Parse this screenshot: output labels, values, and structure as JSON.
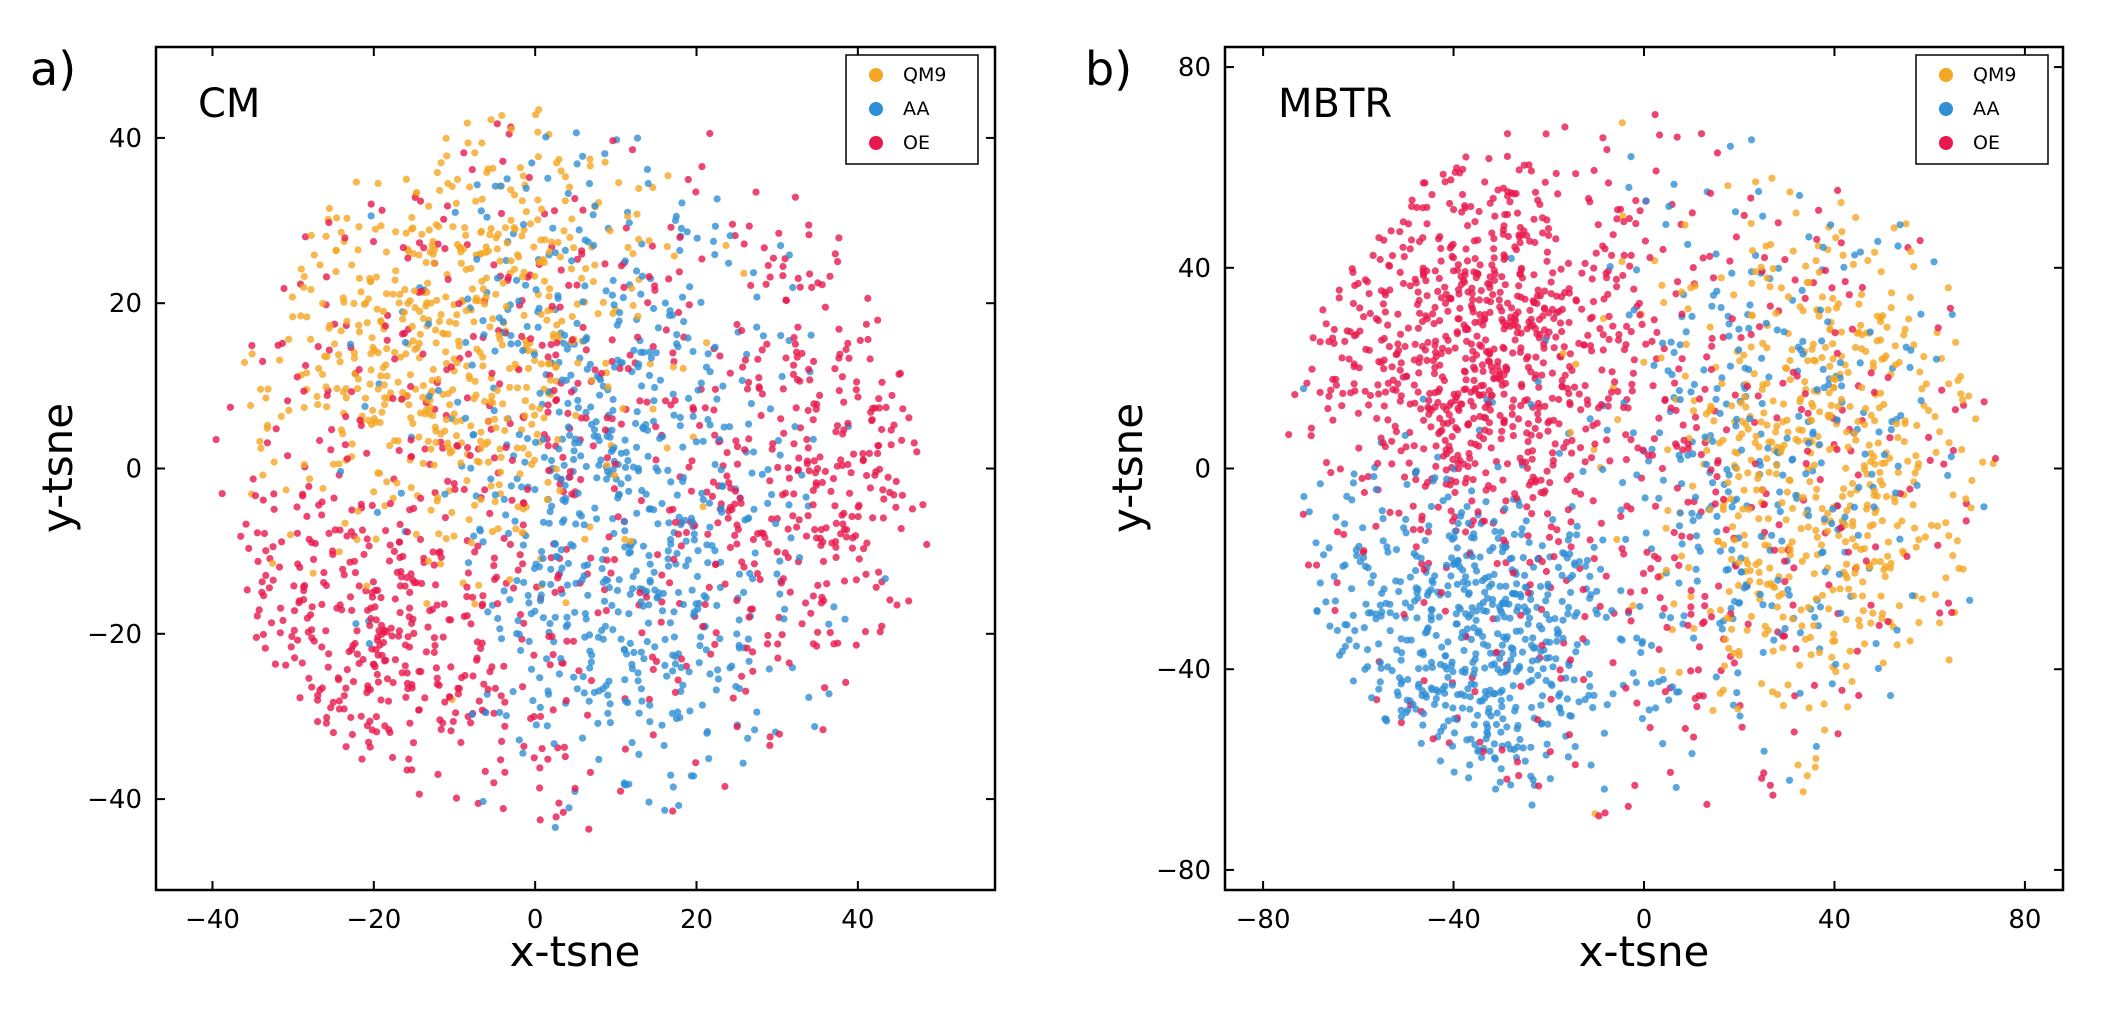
{
  "colors": {
    "QM9": "#f5a623",
    "AA": "#2f8fd6",
    "OE": "#e8194e"
  },
  "chart_data": [
    {
      "type": "scatter",
      "panel_label": "a)",
      "title": "CM",
      "xlabel": "x-tsne",
      "ylabel": "y-tsne",
      "xlim": [
        -47,
        57
      ],
      "ylim": [
        -51,
        51
      ],
      "xticks": [
        -40,
        -20,
        0,
        20,
        40
      ],
      "yticks": [
        -40,
        -20,
        0,
        20,
        40
      ],
      "xtick_labels": [
        "−40",
        "−20",
        "0",
        "20",
        "40"
      ],
      "ytick_labels": [
        "−40",
        "−20",
        "0",
        "20",
        "40"
      ],
      "grid": false,
      "legend_position": "top-right",
      "legend": [
        "QM9",
        "AA",
        "OE"
      ],
      "series": [
        {
          "name": "QM9",
          "color": "#f5a623",
          "clusters": [
            {
              "cx": -12,
              "cy": 13,
              "sx": 11,
              "sy": 13,
              "n": 500
            },
            {
              "cx": -5,
              "cy": 30,
              "sx": 10,
              "sy": 7,
              "n": 140
            }
          ]
        },
        {
          "name": "AA",
          "color": "#2f8fd6",
          "clusters": [
            {
              "cx": 12,
              "cy": -8,
              "sx": 11,
              "sy": 18,
              "n": 650
            },
            {
              "cx": 5,
              "cy": 22,
              "sx": 12,
              "sy": 9,
              "n": 100
            }
          ]
        },
        {
          "name": "OE",
          "color": "#e8194e",
          "clusters": [
            {
              "cx": -22,
              "cy": -22,
              "sx": 10,
              "sy": 10,
              "n": 320
            },
            {
              "cx": 38,
              "cy": 0,
              "sx": 9,
              "sy": 13,
              "n": 260
            },
            {
              "cx": 0,
              "cy": 0,
              "sx": 26,
              "sy": 26,
              "n": 750
            }
          ]
        }
      ]
    },
    {
      "type": "scatter",
      "panel_label": "b)",
      "title": "MBTR",
      "xlabel": "x-tsne",
      "ylabel": "y-tsne",
      "xlim": [
        -88,
        88
      ],
      "ylim": [
        -84,
        84
      ],
      "xticks": [
        -80,
        -40,
        0,
        40,
        80
      ],
      "yticks": [
        -80,
        -40,
        0,
        40,
        80
      ],
      "xtick_labels": [
        "−80",
        "−40",
        "0",
        "40",
        "80"
      ],
      "ytick_labels": [
        "−80",
        "−40",
        "0",
        "40",
        "80"
      ],
      "grid": false,
      "legend_position": "top-right",
      "legend": [
        "QM9",
        "AA",
        "OE"
      ],
      "series": [
        {
          "name": "QM9",
          "color": "#f5a623",
          "clusters": [
            {
              "cx": 35,
              "cy": 0,
              "sx": 17,
              "sy": 26,
              "n": 600
            }
          ]
        },
        {
          "name": "AA",
          "color": "#2f8fd6",
          "clusters": [
            {
              "cx": -35,
              "cy": -35,
              "sx": 19,
              "sy": 18,
              "n": 700
            },
            {
              "cx": 25,
              "cy": 5,
              "sx": 20,
              "sy": 30,
              "n": 330
            }
          ]
        },
        {
          "name": "OE",
          "color": "#e8194e",
          "clusters": [
            {
              "cx": -35,
              "cy": 25,
              "sx": 20,
              "sy": 20,
              "n": 800
            },
            {
              "cx": 0,
              "cy": 0,
              "sx": 42,
              "sy": 42,
              "n": 550
            }
          ]
        }
      ]
    }
  ]
}
